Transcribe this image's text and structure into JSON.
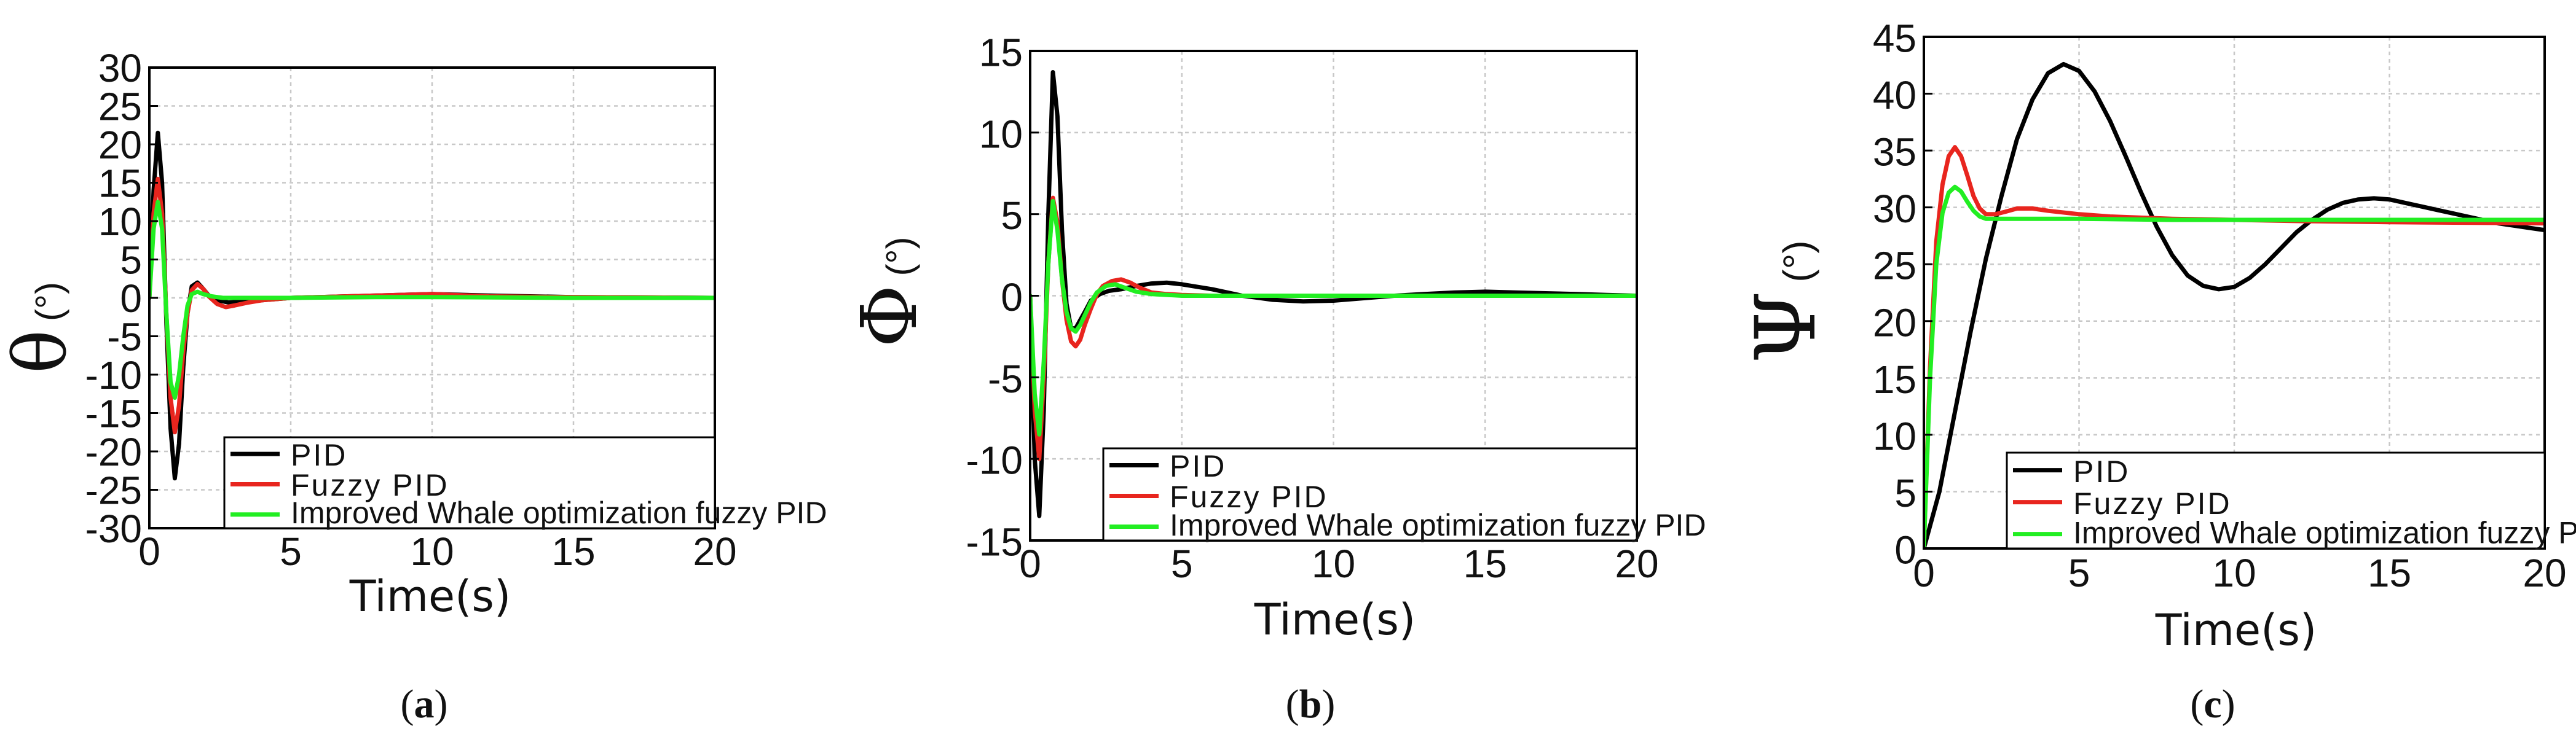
{
  "colors": {
    "pid": "#000000",
    "fuzzy": "#e8251e",
    "iwo": "#22ee22",
    "grid": "#c8c8c8",
    "axis": "#000000"
  },
  "chart_data": [
    {
      "type": "line",
      "panel_label": "a",
      "ylabel": {
        "symbol": "θ",
        "unit": "(°)"
      },
      "xlabel": "Time(s)",
      "xlim": [
        0,
        20
      ],
      "ylim": [
        -30,
        30
      ],
      "xticks": [
        0,
        5,
        10,
        15,
        20
      ],
      "yticks": [
        -30,
        -25,
        -20,
        -15,
        -10,
        -5,
        0,
        5,
        10,
        15,
        20,
        25,
        30
      ],
      "grid": true,
      "legend_position": "bottom-right",
      "series": [
        {
          "name": "PID",
          "color": "#000000",
          "x": [
            0,
            0.15,
            0.3,
            0.45,
            0.6,
            0.75,
            0.9,
            1.05,
            1.2,
            1.35,
            1.5,
            1.7,
            1.9,
            2.1,
            2.4,
            2.8,
            3.2,
            4,
            5,
            6,
            8,
            10,
            12,
            15,
            20
          ],
          "y": [
            0,
            14,
            21.5,
            15,
            -3,
            -17,
            -23.5,
            -19,
            -9,
            -2,
            1.5,
            2,
            1.2,
            0.3,
            -0.3,
            -0.6,
            -0.5,
            -0.3,
            0,
            0.1,
            0.3,
            0.5,
            0.3,
            0.1,
            0
          ]
        },
        {
          "name": "Fuzzy PID",
          "color": "#e8251e",
          "x": [
            0,
            0.15,
            0.3,
            0.45,
            0.6,
            0.75,
            0.9,
            1.05,
            1.2,
            1.35,
            1.5,
            1.7,
            1.9,
            2.1,
            2.4,
            2.7,
            3.0,
            3.5,
            4,
            5,
            6,
            8,
            10,
            12,
            15,
            20
          ],
          "y": [
            0,
            11,
            15.5,
            11,
            -2,
            -13,
            -17.5,
            -14,
            -7,
            -2,
            1,
            1.8,
            1.2,
            0.2,
            -0.8,
            -1.2,
            -1,
            -0.6,
            -0.3,
            0,
            0.1,
            0.3,
            0.5,
            0.2,
            0.1,
            0
          ]
        },
        {
          "name": "Improved Whale optimization fuzzy PID",
          "color": "#22ee22",
          "x": [
            0,
            0.15,
            0.3,
            0.45,
            0.6,
            0.75,
            0.9,
            1.05,
            1.2,
            1.35,
            1.5,
            1.7,
            1.9,
            2.2,
            2.6,
            3,
            4,
            5,
            8,
            10,
            15,
            20
          ],
          "y": [
            0,
            9,
            12.5,
            9,
            -2,
            -11,
            -13,
            -10,
            -5,
            -1,
            0.5,
            0.8,
            0.5,
            0.2,
            0,
            0,
            0,
            0,
            0.1,
            0.1,
            0,
            0
          ]
        }
      ]
    },
    {
      "type": "line",
      "panel_label": "b",
      "ylabel": {
        "symbol": "Φ",
        "unit": "(°)"
      },
      "xlabel": "Time(s)",
      "xlim": [
        0,
        20
      ],
      "ylim": [
        -15,
        15
      ],
      "xticks": [
        0,
        5,
        10,
        15,
        20
      ],
      "yticks": [
        -15,
        -10,
        -5,
        0,
        5,
        10,
        15
      ],
      "grid": true,
      "legend_position": "bottom-right",
      "series": [
        {
          "name": "PID",
          "color": "#000000",
          "x": [
            0,
            0.15,
            0.3,
            0.45,
            0.6,
            0.75,
            0.9,
            1.05,
            1.2,
            1.35,
            1.5,
            1.65,
            1.8,
            2.0,
            2.3,
            2.6,
            3.0,
            3.5,
            4,
            4.5,
            5,
            6,
            7,
            8,
            9,
            10,
            11,
            12,
            13,
            14,
            15,
            16,
            17,
            18,
            19,
            20
          ],
          "y": [
            0,
            -10,
            -13.5,
            -7,
            5,
            13.7,
            11,
            4,
            -0.5,
            -2,
            -2,
            -1.5,
            -1,
            -0.3,
            0.1,
            0.3,
            0.4,
            0.6,
            0.75,
            0.8,
            0.7,
            0.4,
            0,
            -0.25,
            -0.35,
            -0.3,
            -0.15,
            0,
            0.1,
            0.2,
            0.25,
            0.2,
            0.15,
            0.1,
            0.05,
            0
          ]
        },
        {
          "name": "Fuzzy PID",
          "color": "#e8251e",
          "x": [
            0,
            0.15,
            0.3,
            0.45,
            0.6,
            0.75,
            0.9,
            1.05,
            1.2,
            1.35,
            1.5,
            1.65,
            1.8,
            2.0,
            2.2,
            2.4,
            2.7,
            3.0,
            3.3,
            3.6,
            4.0,
            4.5,
            5,
            6,
            8,
            10,
            15,
            20
          ],
          "y": [
            0,
            -7,
            -10,
            -5,
            2,
            6,
            4.5,
            1,
            -1.5,
            -2.8,
            -3.1,
            -2.7,
            -1.8,
            -0.8,
            0.1,
            0.6,
            0.9,
            1.0,
            0.8,
            0.5,
            0.2,
            0.1,
            0.05,
            0,
            0,
            0,
            0,
            0
          ]
        },
        {
          "name": "Improved Whale optimization fuzzy PID",
          "color": "#22ee22",
          "x": [
            0,
            0.15,
            0.3,
            0.45,
            0.6,
            0.75,
            0.9,
            1.05,
            1.2,
            1.35,
            1.5,
            1.65,
            1.8,
            2.0,
            2.2,
            2.5,
            2.8,
            3.1,
            3.5,
            4,
            5,
            8,
            10,
            15,
            20
          ],
          "y": [
            0,
            -6,
            -8.5,
            -4,
            2,
            5.8,
            4,
            1,
            -1,
            -2,
            -2.2,
            -1.8,
            -1.2,
            -0.4,
            0.2,
            0.6,
            0.7,
            0.5,
            0.25,
            0.1,
            0,
            0,
            0,
            0,
            0
          ]
        }
      ]
    },
    {
      "type": "line",
      "panel_label": "c",
      "ylabel": {
        "symbol": "Ψ",
        "unit": "(°)"
      },
      "xlabel": "Time(s)",
      "xlim": [
        0,
        20
      ],
      "ylim": [
        0,
        45
      ],
      "xticks": [
        0,
        5,
        10,
        15,
        20
      ],
      "yticks": [
        0,
        5,
        10,
        15,
        20,
        25,
        30,
        35,
        40,
        45
      ],
      "grid": true,
      "legend_position": "bottom-right",
      "series": [
        {
          "name": "PID",
          "color": "#000000",
          "x": [
            0,
            0.5,
            1,
            1.5,
            2,
            2.5,
            3,
            3.5,
            4,
            4.5,
            5,
            5.5,
            6,
            6.5,
            7,
            7.5,
            8,
            8.5,
            9,
            9.5,
            10,
            10.5,
            11,
            11.5,
            12,
            12.5,
            13,
            13.5,
            14,
            14.5,
            15,
            15.5,
            16,
            16.5,
            17,
            17.5,
            18,
            18.5,
            19,
            19.5,
            20
          ],
          "y": [
            0,
            5,
            12,
            19,
            25.5,
            31,
            36,
            39.5,
            41.8,
            42.6,
            42,
            40.2,
            37.6,
            34.5,
            31.3,
            28.3,
            25.8,
            24,
            23.1,
            22.8,
            23,
            23.8,
            25,
            26.4,
            27.8,
            28.9,
            29.8,
            30.4,
            30.7,
            30.8,
            30.7,
            30.4,
            30.1,
            29.8,
            29.5,
            29.2,
            28.9,
            28.6,
            28.4,
            28.2,
            28
          ]
        },
        {
          "name": "Fuzzy PID",
          "color": "#e8251e",
          "x": [
            0,
            0.2,
            0.4,
            0.6,
            0.8,
            1.0,
            1.2,
            1.4,
            1.6,
            1.8,
            2.0,
            2.3,
            2.6,
            3.0,
            3.5,
            4,
            5,
            6,
            8,
            10,
            12,
            15,
            20
          ],
          "y": [
            0,
            16,
            27,
            32,
            34.5,
            35.3,
            34.5,
            32.8,
            31,
            29.9,
            29.4,
            29.4,
            29.6,
            29.9,
            29.9,
            29.7,
            29.4,
            29.2,
            29,
            28.9,
            28.8,
            28.7,
            28.6
          ]
        },
        {
          "name": "Improved Whale optimization fuzzy PID",
          "color": "#22ee22",
          "x": [
            0,
            0.2,
            0.4,
            0.6,
            0.8,
            1.0,
            1.2,
            1.4,
            1.6,
            1.8,
            2.0,
            2.3,
            2.6,
            3.0,
            3.5,
            4,
            5,
            8,
            10,
            15,
            20
          ],
          "y": [
            0,
            15,
            25,
            29.5,
            31.3,
            31.8,
            31.4,
            30.5,
            29.7,
            29.2,
            29,
            29,
            29,
            29,
            29,
            29,
            29,
            28.9,
            28.9,
            28.9,
            28.9
          ]
        }
      ]
    }
  ]
}
